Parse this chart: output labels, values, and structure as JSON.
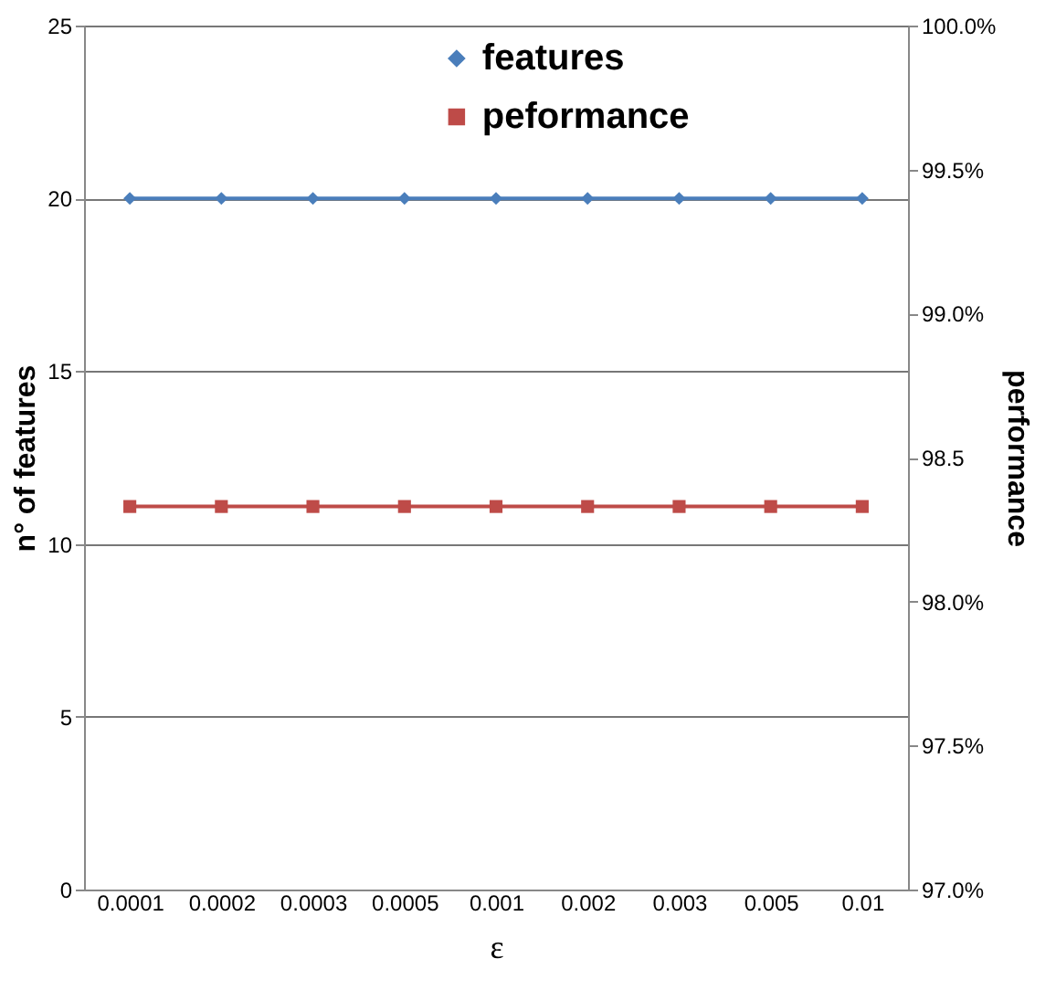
{
  "chart_data": {
    "type": "line",
    "xlabel": "ε",
    "ylabel": "n° of features",
    "y2label": "performance",
    "categories": [
      "0.0001",
      "0.0002",
      "0.0003",
      "0.0005",
      "0.001",
      "0.002",
      "0.003",
      "0.005",
      "0.01"
    ],
    "series": [
      {
        "name": "features",
        "color": "#4a7ebb",
        "marker": "diamond",
        "values": [
          20,
          20,
          20,
          20,
          20,
          20,
          20,
          20,
          20
        ]
      },
      {
        "name": "peformance",
        "color": "#be4b48",
        "marker": "square",
        "axis": "y2",
        "values": [
          98.33,
          98.33,
          98.33,
          98.33,
          98.33,
          98.33,
          98.33,
          98.33,
          98.33
        ]
      }
    ],
    "ylim": [
      0,
      25
    ],
    "yticks": [
      0,
      5,
      10,
      15,
      20,
      25
    ],
    "y2lim": [
      97,
      100
    ],
    "y2ticks": [
      {
        "value": 97,
        "label": "97.0%"
      },
      {
        "value": 97.5,
        "label": "97.5%"
      },
      {
        "value": 98,
        "label": "98.0%"
      },
      {
        "value": 98.5,
        "label": "98.5"
      },
      {
        "value": 99,
        "label": "99.0%"
      },
      {
        "value": 99.5,
        "label": "99.5%"
      },
      {
        "value": 100,
        "label": "100.0%"
      }
    ],
    "grid": "y",
    "legend": "top",
    "line_style": "solid"
  }
}
